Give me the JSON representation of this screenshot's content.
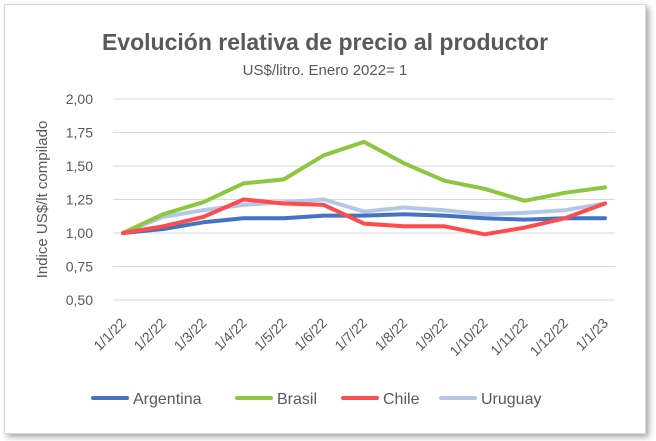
{
  "chart_data": {
    "type": "line",
    "title": "Evolución relativa de precio al productor",
    "subtitle": "US$/litro. Enero 2022= 1",
    "ylabel": "Indice US$/lt compilado",
    "xlabel": "",
    "ylim": [
      0.5,
      2.0
    ],
    "yticks": [
      0.5,
      0.75,
      1.0,
      1.25,
      1.5,
      1.75,
      2.0
    ],
    "ytick_labels": [
      "0,50",
      "0,75",
      "1,00",
      "1,25",
      "1,50",
      "1,75",
      "2,00"
    ],
    "grid": true,
    "legend_position": "bottom",
    "categories": [
      "1/1/22",
      "1/2/22",
      "1/3/22",
      "1/4/22",
      "1/5/22",
      "1/6/22",
      "1/7/22",
      "1/8/22",
      "1/9/22",
      "1/10/22",
      "1/11/22",
      "1/12/22",
      "1/1/23"
    ],
    "series": [
      {
        "name": "Argentina",
        "color": "#4472c4",
        "values": [
          1.0,
          1.03,
          1.08,
          1.11,
          1.11,
          1.13,
          1.13,
          1.14,
          1.13,
          1.11,
          1.1,
          1.11,
          1.11
        ]
      },
      {
        "name": "Brasil",
        "color": "#8dc63f",
        "values": [
          1.0,
          1.14,
          1.23,
          1.37,
          1.4,
          1.58,
          1.68,
          1.52,
          1.39,
          1.33,
          1.24,
          1.3,
          1.34
        ]
      },
      {
        "name": "Chile",
        "color": "#ff4b4b",
        "values": [
          1.0,
          1.05,
          1.12,
          1.25,
          1.22,
          1.21,
          1.07,
          1.05,
          1.05,
          0.99,
          1.04,
          1.11,
          1.22
        ]
      },
      {
        "name": "Uruguay",
        "color": "#b4c7e7",
        "values": [
          1.0,
          1.12,
          1.17,
          1.21,
          1.23,
          1.25,
          1.16,
          1.19,
          1.17,
          1.14,
          1.15,
          1.17,
          1.22
        ]
      }
    ]
  }
}
